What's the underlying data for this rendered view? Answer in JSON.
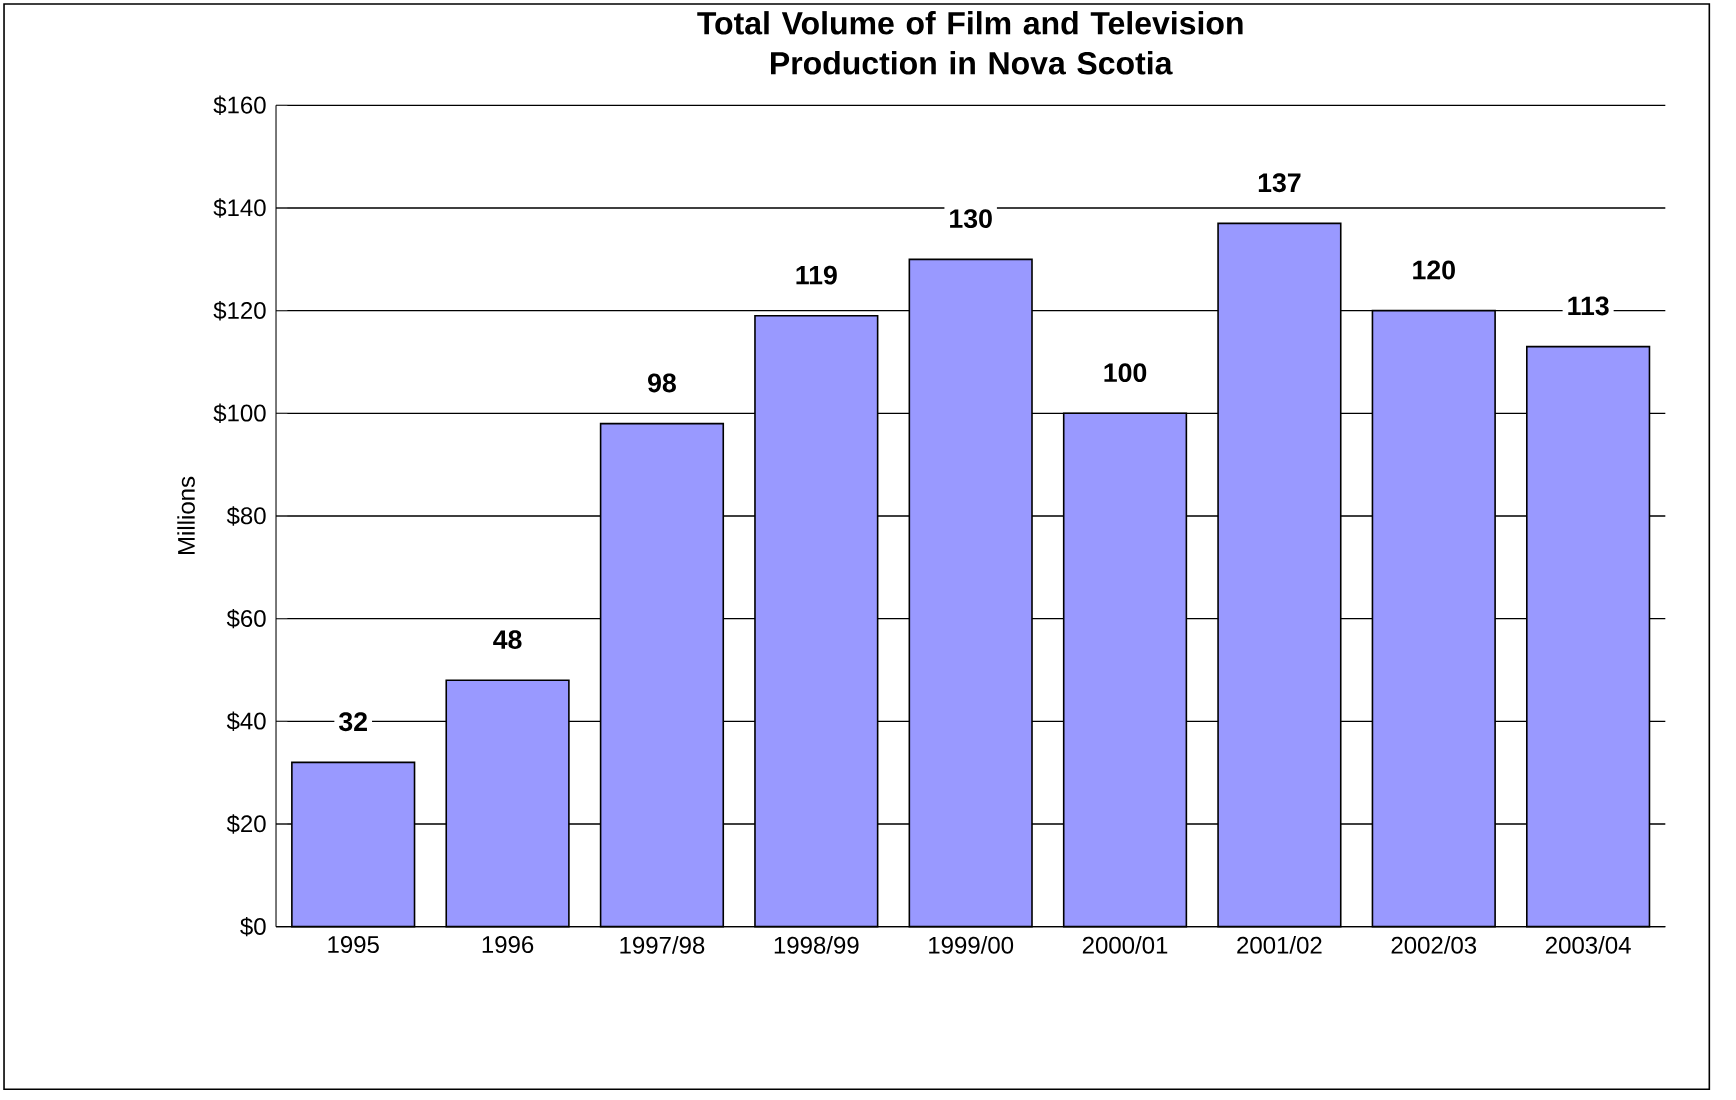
{
  "chart_data": {
    "type": "bar",
    "title": "Total Volume of Film and Television Production in Nova Scotia",
    "ylabel": "Millions",
    "categories": [
      "1995",
      "1996",
      "1997/98",
      "1998/99",
      "1999/00",
      "2000/01",
      "2001/02",
      "2002/03",
      "2003/04"
    ],
    "values": [
      32,
      48,
      98,
      119,
      130,
      100,
      137,
      120,
      113
    ],
    "color": "#9999ff",
    "ylim": [
      0,
      160
    ],
    "yticks": [
      {
        "value": 0,
        "label": "$0"
      },
      {
        "value": 20,
        "label": "$20"
      },
      {
        "value": 40,
        "label": "$40"
      },
      {
        "value": 60,
        "label": "$60"
      },
      {
        "value": 80,
        "label": "$80"
      },
      {
        "value": 100,
        "label": "$100"
      },
      {
        "value": 120,
        "label": "$120"
      },
      {
        "value": 140,
        "label": "$140"
      },
      {
        "value": 160,
        "label": "$160"
      }
    ],
    "grid": "y",
    "data_labels": true
  }
}
